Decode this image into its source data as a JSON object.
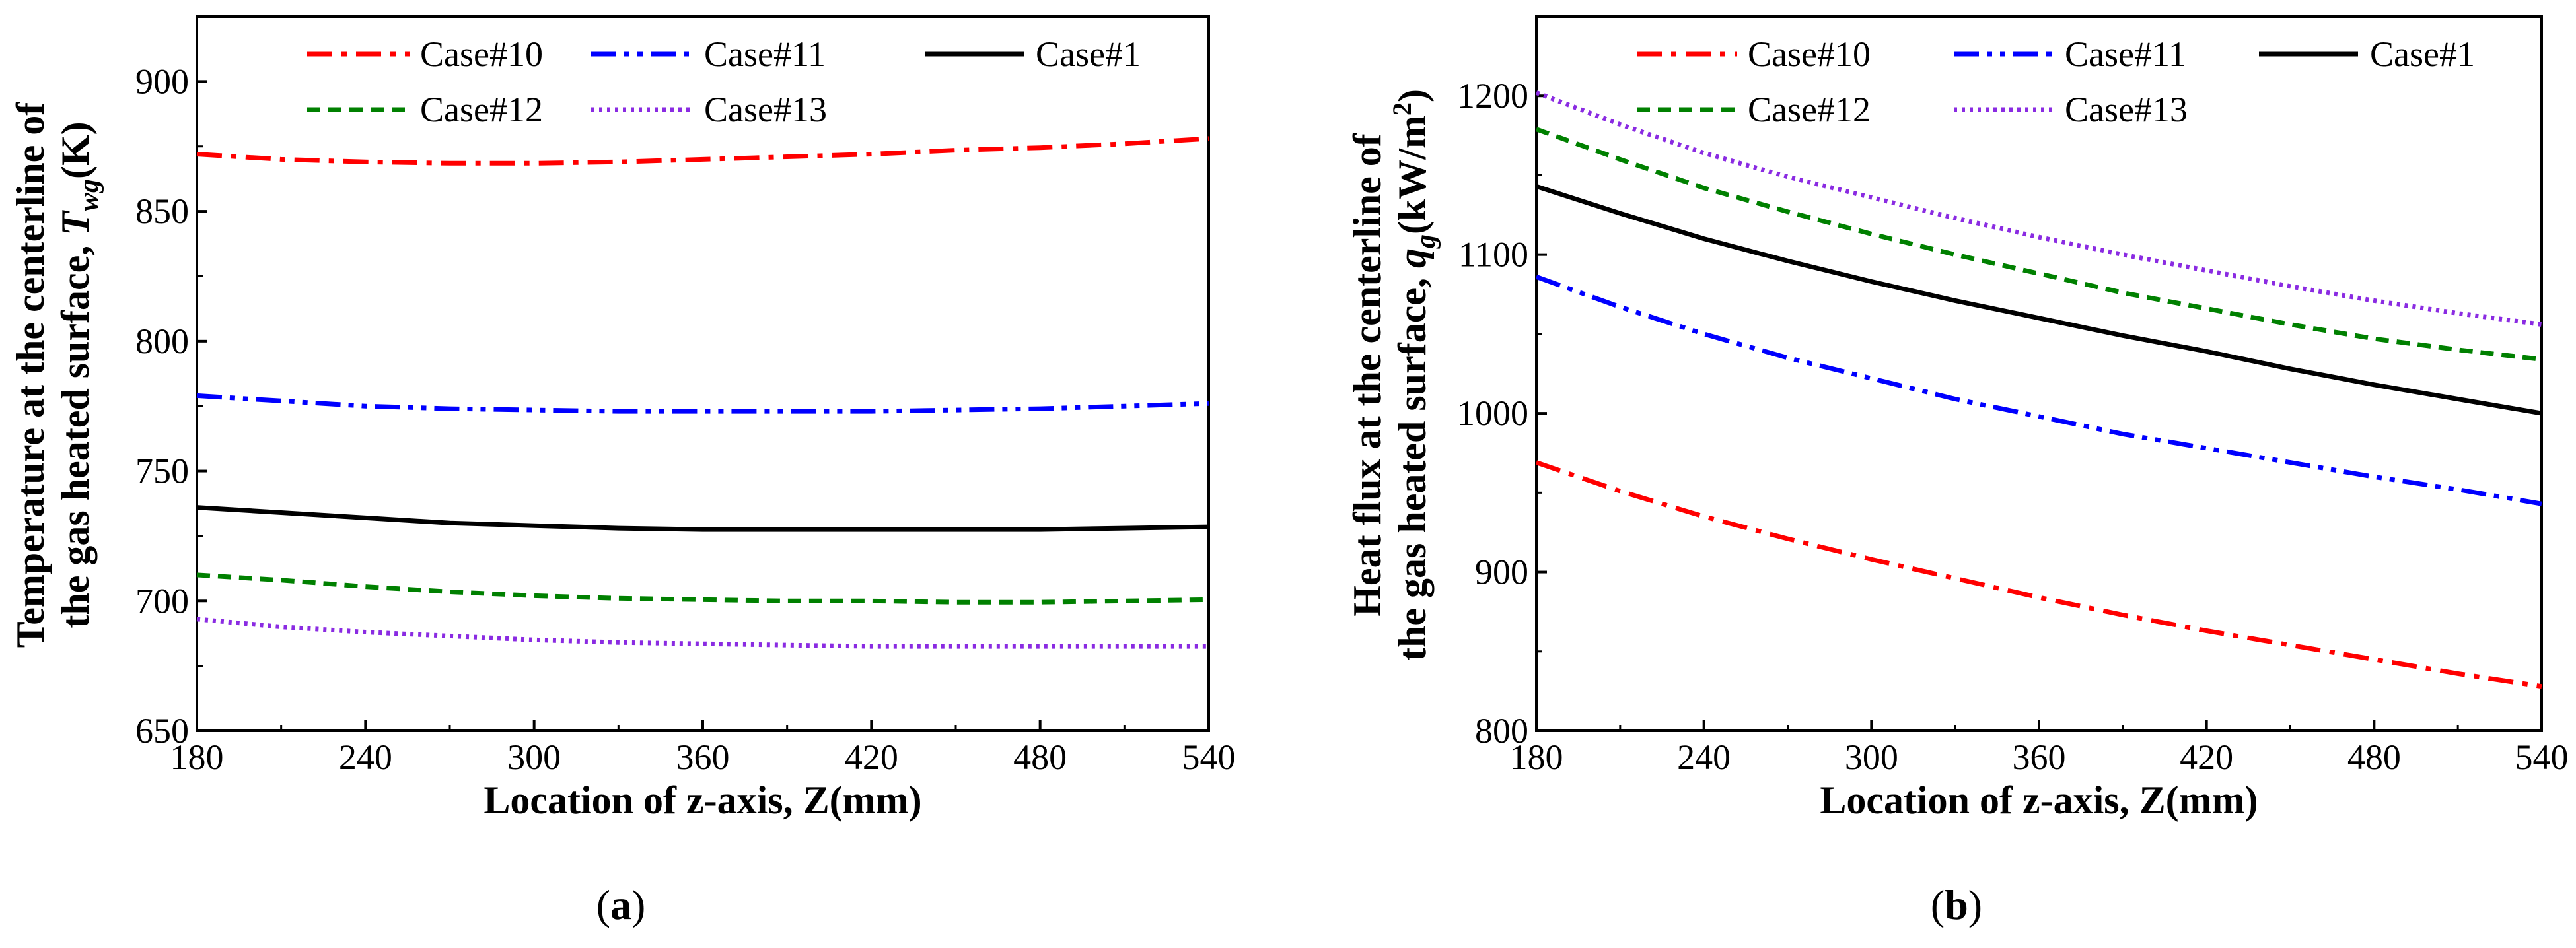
{
  "chart_data": [
    {
      "type": "line",
      "panel": "a",
      "panel_label_open": "(",
      "panel_label_letter": "a",
      "panel_label_close": ")",
      "title": "",
      "xlabel": "Location of z-axis, Z(mm)",
      "ylabel_line1": "Temperature at the centerline of",
      "ylabel_line2_text": "the gas heated surface, ",
      "ylabel_symbol": "T",
      "ylabel_subscript": "wg",
      "ylabel_unit": "(K)",
      "xlim": [
        180,
        540
      ],
      "ylim": [
        650,
        925
      ],
      "xticks": [
        "180",
        "240",
        "300",
        "360",
        "420",
        "480",
        "540"
      ],
      "yticks": [
        "650",
        "700",
        "750",
        "800",
        "850",
        "900"
      ],
      "x": [
        180,
        210,
        240,
        270,
        300,
        330,
        360,
        390,
        420,
        450,
        480,
        510,
        540
      ],
      "series": [
        {
          "name": "Case#10",
          "color": "#ff0000",
          "dash": "dashdot",
          "values": [
            872,
            870,
            869,
            868.5,
            868.5,
            869,
            870,
            871,
            872,
            873.5,
            874.5,
            876,
            878
          ]
        },
        {
          "name": "Case#11",
          "color": "#0000ff",
          "dash": "dashdotdot",
          "values": [
            779,
            777,
            775,
            774,
            773.5,
            773,
            773,
            773,
            773,
            773.5,
            774,
            775,
            776
          ]
        },
        {
          "name": "Case#1",
          "color": "#000000",
          "dash": "solid",
          "values": [
            736,
            734,
            732,
            730,
            729,
            728,
            727.5,
            727.5,
            727.5,
            727.5,
            727.5,
            728,
            728.5
          ]
        },
        {
          "name": "Case#12",
          "color": "#008000",
          "dash": "dash",
          "values": [
            710,
            708,
            705.5,
            703.5,
            702,
            701,
            700.5,
            700,
            700,
            699.5,
            699.5,
            700,
            700.5
          ]
        },
        {
          "name": "Case#13",
          "color": "#8a2be2",
          "dash": "dot",
          "values": [
            693,
            690,
            688,
            686.5,
            685,
            684,
            683.5,
            683,
            682.5,
            682.5,
            682.5,
            682.5,
            682.5
          ]
        }
      ]
    },
    {
      "type": "line",
      "panel": "b",
      "panel_label_open": "(",
      "panel_label_letter": "b",
      "panel_label_close": ")",
      "title": "",
      "xlabel": "Location of z-axis, Z(mm)",
      "ylabel_line1": "Heat flux at the centerline of",
      "ylabel_line2_text": "the gas heated surface, ",
      "ylabel_symbol": "q",
      "ylabel_subscript": "g",
      "ylabel_unit": "(kW/m",
      "ylabel_unit_sup": "2",
      "ylabel_unit_close": ")",
      "xlim": [
        180,
        540
      ],
      "ylim": [
        800,
        1250
      ],
      "xticks": [
        "180",
        "240",
        "300",
        "360",
        "420",
        "480",
        "540"
      ],
      "yticks": [
        "800",
        "900",
        "1000",
        "1100",
        "1200"
      ],
      "x": [
        180,
        210,
        240,
        270,
        300,
        330,
        360,
        390,
        420,
        450,
        480,
        510,
        540
      ],
      "series": [
        {
          "name": "Case#10",
          "color": "#ff0000",
          "dash": "dashdot",
          "values": [
            969,
            951,
            935,
            921,
            908,
            896,
            884,
            873,
            863,
            854,
            845,
            836,
            828
          ]
        },
        {
          "name": "Case#11",
          "color": "#0000ff",
          "dash": "dashdotdot",
          "values": [
            1086,
            1067,
            1050,
            1035,
            1022,
            1009,
            998,
            987,
            978,
            969,
            960,
            952,
            943
          ]
        },
        {
          "name": "Case#1",
          "color": "#000000",
          "dash": "solid",
          "values": [
            1143,
            1126,
            1110,
            1096,
            1083,
            1071,
            1060,
            1049,
            1039,
            1028,
            1018,
            1009,
            1000
          ]
        },
        {
          "name": "Case#12",
          "color": "#008000",
          "dash": "dash",
          "values": [
            1179,
            1160,
            1142,
            1127,
            1113,
            1100,
            1088,
            1076,
            1066,
            1056,
            1047,
            1040,
            1034
          ]
        },
        {
          "name": "Case#13",
          "color": "#8a2be2",
          "dash": "dot",
          "values": [
            1202,
            1182,
            1164,
            1149,
            1136,
            1123,
            1111,
            1100,
            1090,
            1080,
            1071,
            1063,
            1056
          ]
        }
      ]
    }
  ]
}
